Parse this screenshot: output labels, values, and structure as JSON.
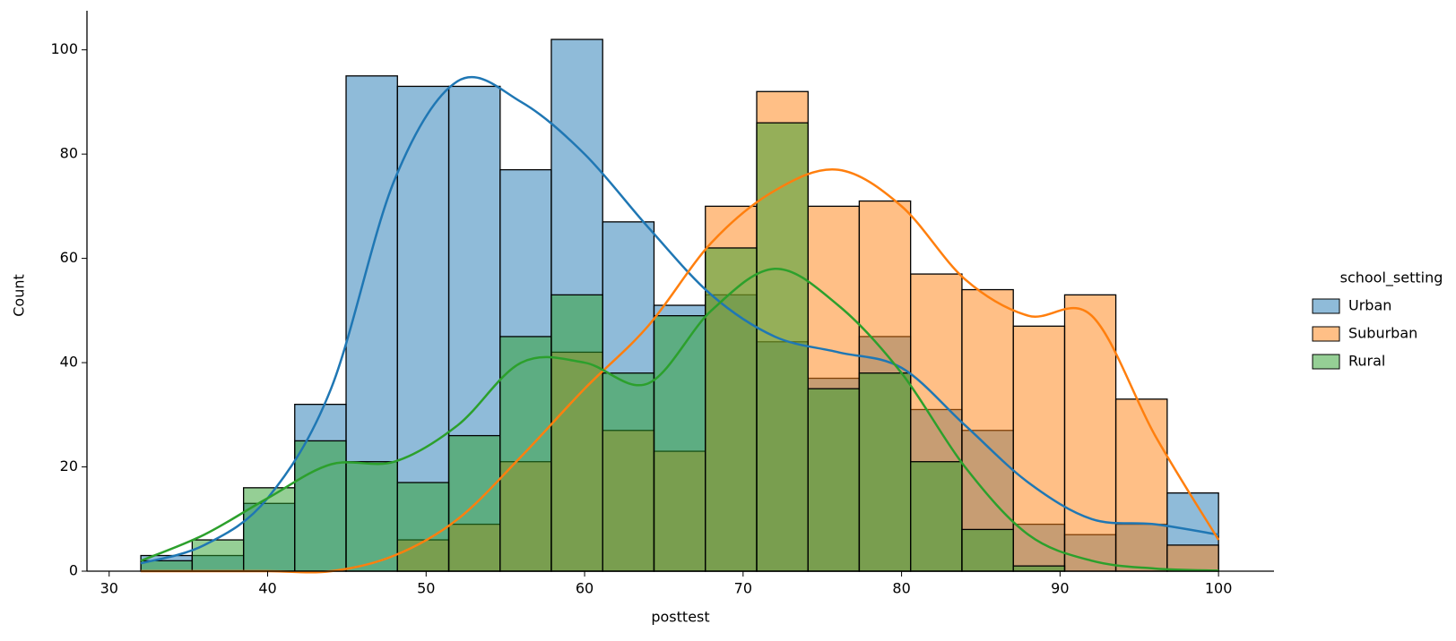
{
  "chart_data": {
    "type": "histogram",
    "xlabel": "posttest",
    "ylabel": "Count",
    "legend_title": "school_setting",
    "legend": "right-outside",
    "bins": [
      32,
      35.24,
      38.48,
      41.71,
      44.95,
      48.19,
      51.43,
      54.67,
      57.9,
      61.14,
      64.38,
      67.62,
      70.86,
      74.1,
      77.33,
      80.57,
      83.81,
      87.05,
      90.29,
      93.52,
      96.76,
      100
    ],
    "kde_x": [
      32,
      36,
      40,
      44,
      48,
      52,
      56,
      60,
      64,
      68,
      72,
      76,
      80,
      84,
      88,
      92,
      96,
      100
    ],
    "series": [
      {
        "name": "Urban",
        "color": "#1f77b4",
        "values": [
          3,
          3,
          13,
          32,
          95,
          93,
          93,
          77,
          102,
          67,
          51,
          53,
          44,
          37,
          45,
          31,
          27,
          9,
          7,
          9,
          15
        ],
        "kde": [
          1.5,
          5,
          14,
          35,
          75,
          94,
          90,
          80,
          66,
          53,
          45,
          42,
          39,
          28,
          17,
          10,
          9,
          7
        ]
      },
      {
        "name": "Suburban",
        "color": "#ff7f0e",
        "values": [
          0,
          0,
          0,
          0,
          0,
          6,
          9,
          21,
          42,
          27,
          23,
          70,
          92,
          70,
          71,
          57,
          54,
          47,
          53,
          33,
          5
        ],
        "kde": [
          0,
          0,
          0,
          0,
          3,
          10,
          22,
          35,
          47,
          63,
          73,
          77,
          70,
          56,
          49,
          49,
          26,
          6
        ]
      },
      {
        "name": "Rural",
        "color": "#2ca02c",
        "values": [
          2,
          6,
          16,
          25,
          21,
          17,
          26,
          45,
          53,
          38,
          49,
          62,
          86,
          35,
          38,
          21,
          8,
          1,
          0,
          0,
          0
        ],
        "kde": [
          2,
          7,
          14,
          20.5,
          21,
          28,
          40,
          40,
          36,
          50,
          58,
          51,
          38,
          20,
          7,
          2,
          0.5,
          0.1
        ]
      }
    ],
    "xlim": [
      28.6,
      103.5
    ],
    "ylim": [
      0,
      107.5
    ],
    "xticks": [
      30,
      40,
      50,
      60,
      70,
      80,
      90,
      100
    ],
    "yticks": [
      0,
      20,
      40,
      60,
      80,
      100
    ],
    "grid": false
  }
}
